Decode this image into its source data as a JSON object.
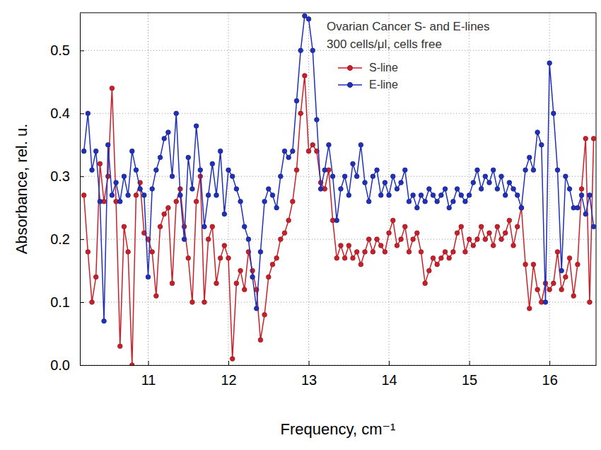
{
  "chart_data": {
    "type": "line",
    "annotations": [
      "Ovarian Cancer S- and E-lines",
      "300 cells/μl, cells free"
    ],
    "x_label": "Frequency, cm⁻¹",
    "y_label": "Absorbance, rel. u.",
    "xlim": [
      10.15,
      16.58
    ],
    "ylim": [
      0,
      0.56
    ],
    "xticks": [
      11,
      12,
      13,
      14,
      15,
      16
    ],
    "yticks": [
      {
        "value": 0,
        "label": "0.0"
      },
      0.1,
      0.2,
      0.3,
      0.4,
      0.5
    ],
    "grid": true,
    "legend": "top",
    "x": [
      10.2,
      10.25,
      10.3,
      10.35,
      10.4,
      10.45,
      10.5,
      10.55,
      10.6,
      10.65,
      10.7,
      10.75,
      10.8,
      10.85,
      10.9,
      10.95,
      11.0,
      11.05,
      11.1,
      11.15,
      11.2,
      11.25,
      11.3,
      11.35,
      11.4,
      11.45,
      11.5,
      11.55,
      11.6,
      11.65,
      11.7,
      11.75,
      11.8,
      11.85,
      11.9,
      11.95,
      12.0,
      12.05,
      12.1,
      12.15,
      12.2,
      12.25,
      12.3,
      12.35,
      12.4,
      12.45,
      12.5,
      12.55,
      12.6,
      12.65,
      12.7,
      12.75,
      12.8,
      12.85,
      12.9,
      12.95,
      13.0,
      13.05,
      13.1,
      13.15,
      13.2,
      13.25,
      13.3,
      13.35,
      13.4,
      13.45,
      13.5,
      13.55,
      13.6,
      13.65,
      13.7,
      13.75,
      13.8,
      13.85,
      13.9,
      13.95,
      14.0,
      14.05,
      14.1,
      14.15,
      14.2,
      14.25,
      14.3,
      14.35,
      14.4,
      14.45,
      14.5,
      14.55,
      14.6,
      14.65,
      14.7,
      14.75,
      14.8,
      14.85,
      14.9,
      14.95,
      15.0,
      15.05,
      15.1,
      15.15,
      15.2,
      15.25,
      15.3,
      15.35,
      15.4,
      15.45,
      15.5,
      15.55,
      15.6,
      15.65,
      15.7,
      15.75,
      15.8,
      15.85,
      15.9,
      15.95,
      16.0,
      16.05,
      16.1,
      16.15,
      16.2,
      16.25,
      16.3,
      16.35,
      16.4,
      16.45,
      16.5,
      16.55
    ],
    "series": [
      {
        "name": "S-line",
        "color": "#c8202a",
        "marker": "circle",
        "line_style": "solid",
        "values": [
          0.27,
          0.18,
          0.1,
          0.14,
          0.32,
          0.26,
          0.3,
          0.44,
          0.26,
          0.03,
          0.22,
          0.18,
          0.0,
          0.27,
          0.29,
          0.21,
          0.2,
          0.18,
          0.11,
          0.22,
          0.24,
          0.25,
          0.13,
          0.26,
          0.28,
          0.22,
          0.17,
          0.1,
          0.26,
          0.3,
          0.1,
          0.2,
          0.22,
          0.13,
          0.17,
          0.19,
          0.17,
          0.01,
          0.13,
          0.15,
          0.12,
          0.18,
          0.15,
          0.12,
          0.04,
          0.08,
          0.14,
          0.16,
          0.17,
          0.2,
          0.21,
          0.23,
          0.26,
          0.31,
          0.4,
          0.46,
          0.34,
          0.35,
          0.34,
          0.29,
          0.28,
          0.31,
          0.23,
          0.17,
          0.19,
          0.17,
          0.19,
          0.17,
          0.18,
          0.16,
          0.18,
          0.2,
          0.18,
          0.2,
          0.19,
          0.18,
          0.21,
          0.23,
          0.19,
          0.2,
          0.22,
          0.18,
          0.2,
          0.21,
          0.18,
          0.13,
          0.15,
          0.17,
          0.16,
          0.17,
          0.18,
          0.17,
          0.18,
          0.21,
          0.22,
          0.18,
          0.2,
          0.19,
          0.2,
          0.22,
          0.2,
          0.21,
          0.19,
          0.22,
          0.2,
          0.21,
          0.23,
          0.19,
          0.22,
          0.25,
          0.16,
          0.09,
          0.16,
          0.12,
          0.1,
          0.13,
          0.12,
          0.13,
          0.18,
          0.12,
          0.14,
          0.17,
          0.11,
          0.16,
          0.28,
          0.36,
          0.1,
          0.36
        ]
      },
      {
        "name": "E-line",
        "color": "#2030b8",
        "marker": "circle",
        "line_style": "solid",
        "values": [
          0.34,
          0.4,
          0.31,
          0.34,
          0.26,
          0.07,
          0.35,
          0.27,
          0.29,
          0.26,
          0.3,
          0.27,
          0.34,
          0.31,
          0.28,
          0.27,
          0.14,
          0.28,
          0.31,
          0.33,
          0.36,
          0.37,
          0.3,
          0.4,
          0.27,
          0.2,
          0.33,
          0.28,
          0.38,
          0.31,
          0.22,
          0.27,
          0.32,
          0.27,
          0.34,
          0.24,
          0.31,
          0.3,
          0.28,
          0.26,
          0.22,
          0.2,
          0.14,
          0.09,
          0.18,
          0.26,
          0.28,
          0.27,
          0.25,
          0.3,
          0.34,
          0.33,
          0.34,
          0.42,
          0.5,
          0.555,
          0.55,
          0.5,
          0.39,
          0.28,
          0.31,
          0.35,
          0.3,
          0.23,
          0.28,
          0.3,
          0.27,
          0.32,
          0.3,
          0.35,
          0.29,
          0.26,
          0.3,
          0.31,
          0.27,
          0.29,
          0.27,
          0.3,
          0.28,
          0.29,
          0.31,
          0.26,
          0.27,
          0.25,
          0.27,
          0.26,
          0.28,
          0.27,
          0.26,
          0.27,
          0.28,
          0.25,
          0.26,
          0.28,
          0.27,
          0.26,
          0.27,
          0.29,
          0.31,
          0.28,
          0.3,
          0.29,
          0.31,
          0.28,
          0.3,
          0.27,
          0.29,
          0.28,
          0.27,
          0.25,
          0.31,
          0.33,
          0.31,
          0.37,
          0.35,
          0.1,
          0.48,
          0.4,
          0.31,
          0.15,
          0.3,
          0.28,
          0.25,
          0.25,
          0.27,
          0.24,
          0.27,
          0.22
        ]
      }
    ]
  }
}
